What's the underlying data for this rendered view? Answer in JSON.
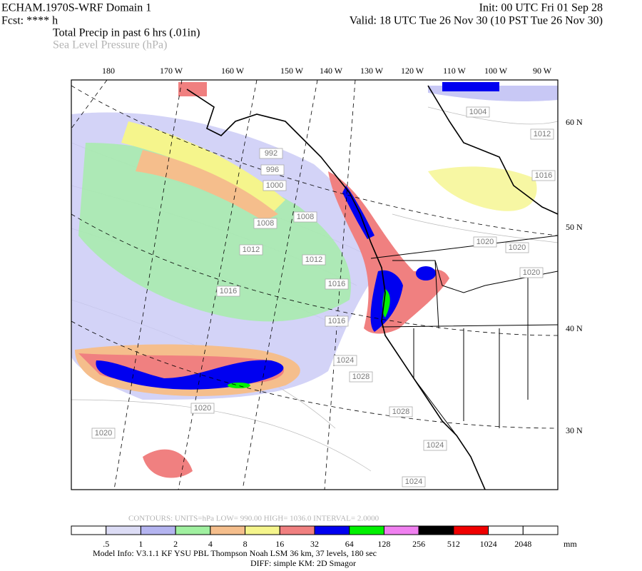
{
  "header": {
    "model": "ECHAM.1970S-WRF Domain 1",
    "forecast": "Fcst: **** h",
    "init": "Init: 00 UTC Fri 01 Sep 28",
    "valid": "Valid: 18 UTC Tue 26 Nov 30 (10 PST Tue 26 Nov 30)",
    "field": "Total Precip in past 6 hrs (.01in)",
    "overlay": "Sea Level Pressure (hPa)"
  },
  "map": {
    "lon_labels": [
      "180",
      "170 W",
      "160 W",
      "150 W",
      "140 W",
      "130 W",
      "120 W",
      "110 W",
      "100 W",
      "90 W"
    ],
    "lat_labels": [
      "60 N",
      "50 N",
      "40 N",
      "30 N"
    ],
    "isobar_labels": [
      "992",
      "996",
      "1000",
      "1008",
      "1008",
      "1012",
      "1012",
      "1016",
      "1016",
      "1016",
      "1020",
      "1020",
      "1020",
      "1020",
      "1024",
      "1028",
      "1028",
      "1024",
      "1024",
      "1004",
      "1012",
      "1016",
      "1020"
    ]
  },
  "contour_info": "CONTOURS:  UNITS=hPa  LOW=  990.00      HIGH=  1036.0      INTERVAL=    2.0000",
  "colorbar": {
    "labels": [
      ".5",
      "1",
      "2",
      "4",
      "8",
      "16",
      "32",
      "64",
      "128",
      "256",
      "512",
      "1024",
      "2048"
    ],
    "colors": [
      "#ffffff",
      "#dcdcf5",
      "#b4b4f0",
      "#a0f0a0",
      "#f5be8c",
      "#f5f58c",
      "#f08080",
      "#0000f0",
      "#00f000",
      "#f080f0",
      "#000000",
      "#f00000",
      "#ffffff",
      "#ffffff"
    ],
    "unit": "mm"
  },
  "footer": {
    "model_info": "Model Info: V3.1.1    KF       YSU PBL   Thompson     Noah LSM  36 km,   37 levels,  180 sec",
    "diff_info": "DIFF: simple KM: 2D Smagor"
  }
}
